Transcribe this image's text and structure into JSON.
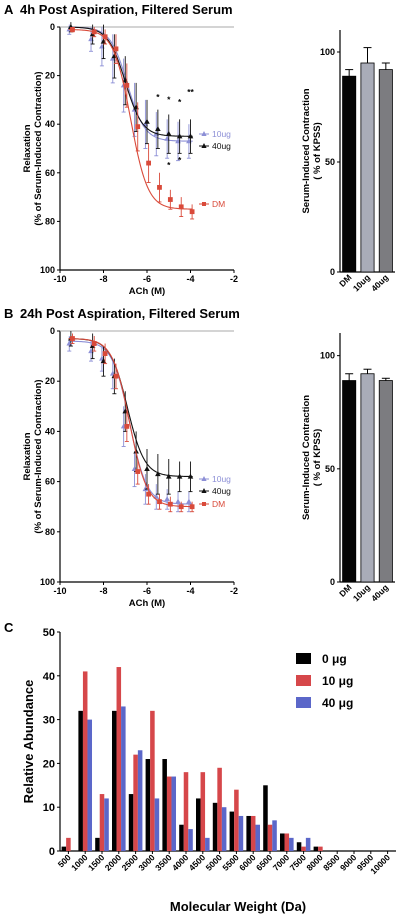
{
  "panels": {
    "A": {
      "letter": "A",
      "title": "4h Post Aspiration, Filtered Serum"
    },
    "B": {
      "letter": "B",
      "title": "24h Post Aspiration, Filtered Serum"
    },
    "C": {
      "letter": "C"
    }
  },
  "colors": {
    "DM": "#d94a3a",
    "10ug": "#8c8fd6",
    "40ug": "#111111",
    "bar_DM": "#050505",
    "bar_10ug": "#a9acb8",
    "bar_40ug": "#7c7c80",
    "C_0": "#000000",
    "C_10": "#d6474a",
    "C_40": "#5b67c9"
  },
  "chart_data": [
    {
      "id": "A-curve",
      "type": "line",
      "xlabel": "ACh (M)",
      "ylabel_line1": "Relaxation",
      "ylabel_line2": "(% of Serum-Induced Contraction)",
      "xlim": [
        -10,
        -2
      ],
      "ylim": [
        100,
        0
      ],
      "y_inverted": true,
      "xticks": [
        "-10",
        "-8",
        "-6",
        "-4",
        "-2"
      ],
      "yticks": [
        "0",
        "20",
        "40",
        "60",
        "80",
        "100"
      ],
      "x": [
        -9.5,
        -8.5,
        -8,
        -7.5,
        -7,
        -6.5,
        -6,
        -5.5,
        -5,
        -4.5,
        -4
      ],
      "series": [
        {
          "name": "10ug",
          "marker": "triangle",
          "values": [
            1,
            5,
            8,
            13,
            24,
            34,
            40,
            44,
            46,
            47,
            47
          ],
          "errors": [
            2,
            5,
            8,
            10,
            11,
            11,
            10,
            9,
            8,
            8,
            7
          ]
        },
        {
          "name": "40ug",
          "marker": "triangle",
          "values": [
            0,
            3,
            6,
            12,
            22,
            33,
            39,
            42,
            44,
            45,
            45
          ],
          "errors": [
            2,
            4,
            7,
            9,
            10,
            10,
            9,
            8,
            8,
            7,
            7
          ]
        },
        {
          "name": "DM",
          "marker": "square",
          "values": [
            1,
            2,
            4,
            9,
            24,
            41,
            56,
            66,
            71,
            74,
            76
          ],
          "errors": [
            1,
            2,
            3,
            6,
            9,
            10,
            8,
            6,
            4,
            4,
            3
          ]
        }
      ],
      "fit_params": {
        "10ug": [
          0,
          47,
          -6.9
        ],
        "40ug": [
          0,
          45,
          -7.0
        ],
        "DM": [
          1,
          75,
          -6.75
        ]
      },
      "annotations": [
        "*",
        "*",
        "*",
        "**",
        "*",
        "*"
      ]
    },
    {
      "id": "A-bar",
      "type": "bar",
      "ylabel_line1": "Serum-Induced Contraction",
      "ylabel_line2": "( % of KPSS)",
      "ylim": [
        0,
        110
      ],
      "yticks": [
        "0",
        "50",
        "100"
      ],
      "categories": [
        "DM",
        "10ug",
        "40ug"
      ],
      "values": [
        89,
        95,
        92
      ],
      "errors": [
        3,
        7,
        3
      ]
    },
    {
      "id": "B-curve",
      "type": "line",
      "xlabel": "ACh (M)",
      "ylabel_line1": "Relaxation",
      "ylabel_line2": "(% of Serum-Induced Contraction)",
      "xlim": [
        -10,
        -2
      ],
      "ylim": [
        100,
        0
      ],
      "y_inverted": true,
      "xticks": [
        "-10",
        "-8",
        "-6",
        "-4",
        "-2"
      ],
      "yticks": [
        "0",
        "20",
        "40",
        "60",
        "80",
        "100"
      ],
      "x": [
        -9.5,
        -8.5,
        -8,
        -7.5,
        -7,
        -6.5,
        -6,
        -5.5,
        -5,
        -4.5,
        -4
      ],
      "series": [
        {
          "name": "10ug",
          "marker": "triangle",
          "values": [
            5,
            8,
            11,
            17,
            38,
            55,
            63,
            66,
            67,
            68,
            68
          ],
          "errors": [
            3,
            4,
            5,
            6,
            8,
            7,
            6,
            5,
            4,
            4,
            4
          ]
        },
        {
          "name": "40ug",
          "marker": "triangle",
          "values": [
            3,
            6,
            12,
            18,
            32,
            48,
            55,
            57,
            58,
            58,
            58
          ],
          "errors": [
            3,
            5,
            6,
            7,
            8,
            8,
            8,
            8,
            7,
            6,
            6
          ]
        },
        {
          "name": "DM",
          "marker": "square",
          "values": [
            3,
            5,
            9,
            18,
            38,
            56,
            65,
            68,
            69,
            70,
            70
          ],
          "errors": [
            2,
            3,
            4,
            5,
            6,
            5,
            4,
            3,
            3,
            2,
            2
          ]
        }
      ],
      "fit_params": {
        "10ug": [
          4,
          69,
          -6.8
        ],
        "40ug": [
          3,
          58,
          -6.9
        ],
        "DM": [
          3,
          70,
          -6.8
        ]
      }
    },
    {
      "id": "B-bar",
      "type": "bar",
      "ylabel_line1": "Serum-Induced Contraction",
      "ylabel_line2": "( % of KPSS)",
      "ylim": [
        0,
        110
      ],
      "yticks": [
        "0",
        "50",
        "100"
      ],
      "categories": [
        "DM",
        "10ug",
        "40ug"
      ],
      "values": [
        89,
        92,
        89
      ],
      "errors": [
        3,
        2,
        1
      ]
    },
    {
      "id": "C-hist",
      "type": "bar",
      "xlabel": "Molecular Weight (Da)",
      "ylabel": "Relative Abundance",
      "ylim": [
        0,
        50
      ],
      "yticks": [
        "0",
        "10",
        "20",
        "30",
        "40",
        "50"
      ],
      "categories": [
        "500",
        "1000",
        "1500",
        "2000",
        "2500",
        "3000",
        "3500",
        "4000",
        "4500",
        "5000",
        "5500",
        "6000",
        "6500",
        "7000",
        "7500",
        "8000",
        "8500",
        "9000",
        "9500",
        "10000"
      ],
      "series": [
        {
          "name": "0 μg",
          "values": [
            1,
            32,
            3,
            32,
            13,
            21,
            21,
            6,
            12,
            11,
            9,
            8,
            15,
            4,
            2,
            1,
            0,
            0,
            0,
            0
          ]
        },
        {
          "name": "10 μg",
          "values": [
            3,
            41,
            13,
            42,
            22,
            32,
            17,
            18,
            18,
            19,
            14,
            8,
            6,
            4,
            1,
            1,
            0,
            0,
            0,
            0
          ]
        },
        {
          "name": "40 μg",
          "values": [
            0,
            30,
            12,
            33,
            23,
            12,
            17,
            5,
            3,
            10,
            8,
            6,
            7,
            3,
            3,
            0,
            0,
            0,
            0,
            0
          ]
        }
      ],
      "legend_position": "top-right"
    }
  ]
}
